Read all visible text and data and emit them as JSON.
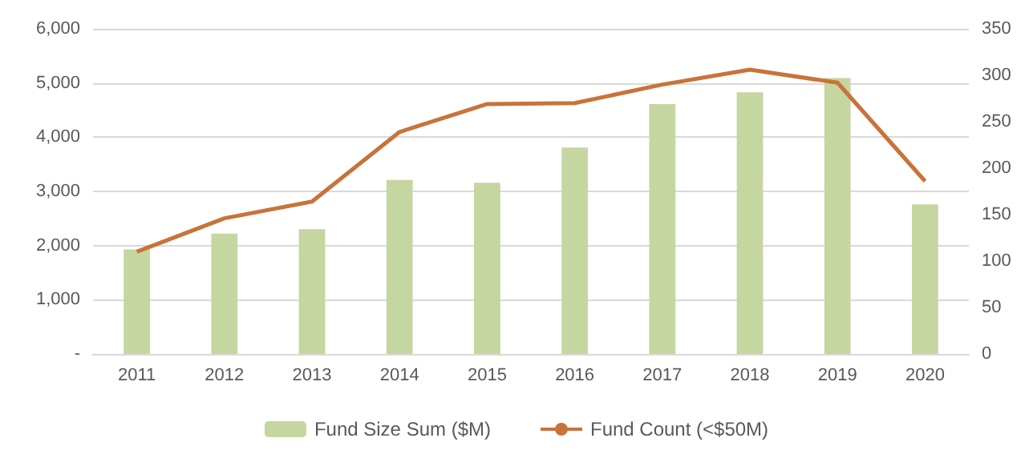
{
  "chart_data": {
    "type": "bar",
    "categories": [
      "2011",
      "2012",
      "2013",
      "2014",
      "2015",
      "2016",
      "2017",
      "2018",
      "2019",
      "2020"
    ],
    "series": [
      {
        "name": "Fund Size Sum ($M)",
        "color": "#c5d6a0",
        "values": [
          1930,
          2220,
          2300,
          3210,
          3160,
          3810,
          4610,
          4830,
          5090,
          2760
        ]
      },
      {
        "name": "Fund Count (<$50M)",
        "type": "line",
        "axis": "y2",
        "color": "#c8733a",
        "values": [
          110,
          146,
          164,
          239,
          269,
          270,
          290,
          306,
          292,
          186
        ]
      }
    ],
    "ylim": [
      0,
      6000
    ],
    "yticks": [
      {
        "value": 0,
        "label": "-"
      },
      {
        "value": 1000,
        "label": "1,000"
      },
      {
        "value": 2000,
        "label": "2,000"
      },
      {
        "value": 3000,
        "label": "3,000"
      },
      {
        "value": 4000,
        "label": "4,000"
      },
      {
        "value": 5000,
        "label": "5,000"
      },
      {
        "value": 6000,
        "label": "6,000"
      }
    ],
    "y2lim": [
      0,
      350
    ],
    "y2ticks": [
      0,
      50,
      100,
      150,
      200,
      250,
      300,
      350
    ],
    "grid": "y",
    "legend": "bottom",
    "marker": "none"
  }
}
